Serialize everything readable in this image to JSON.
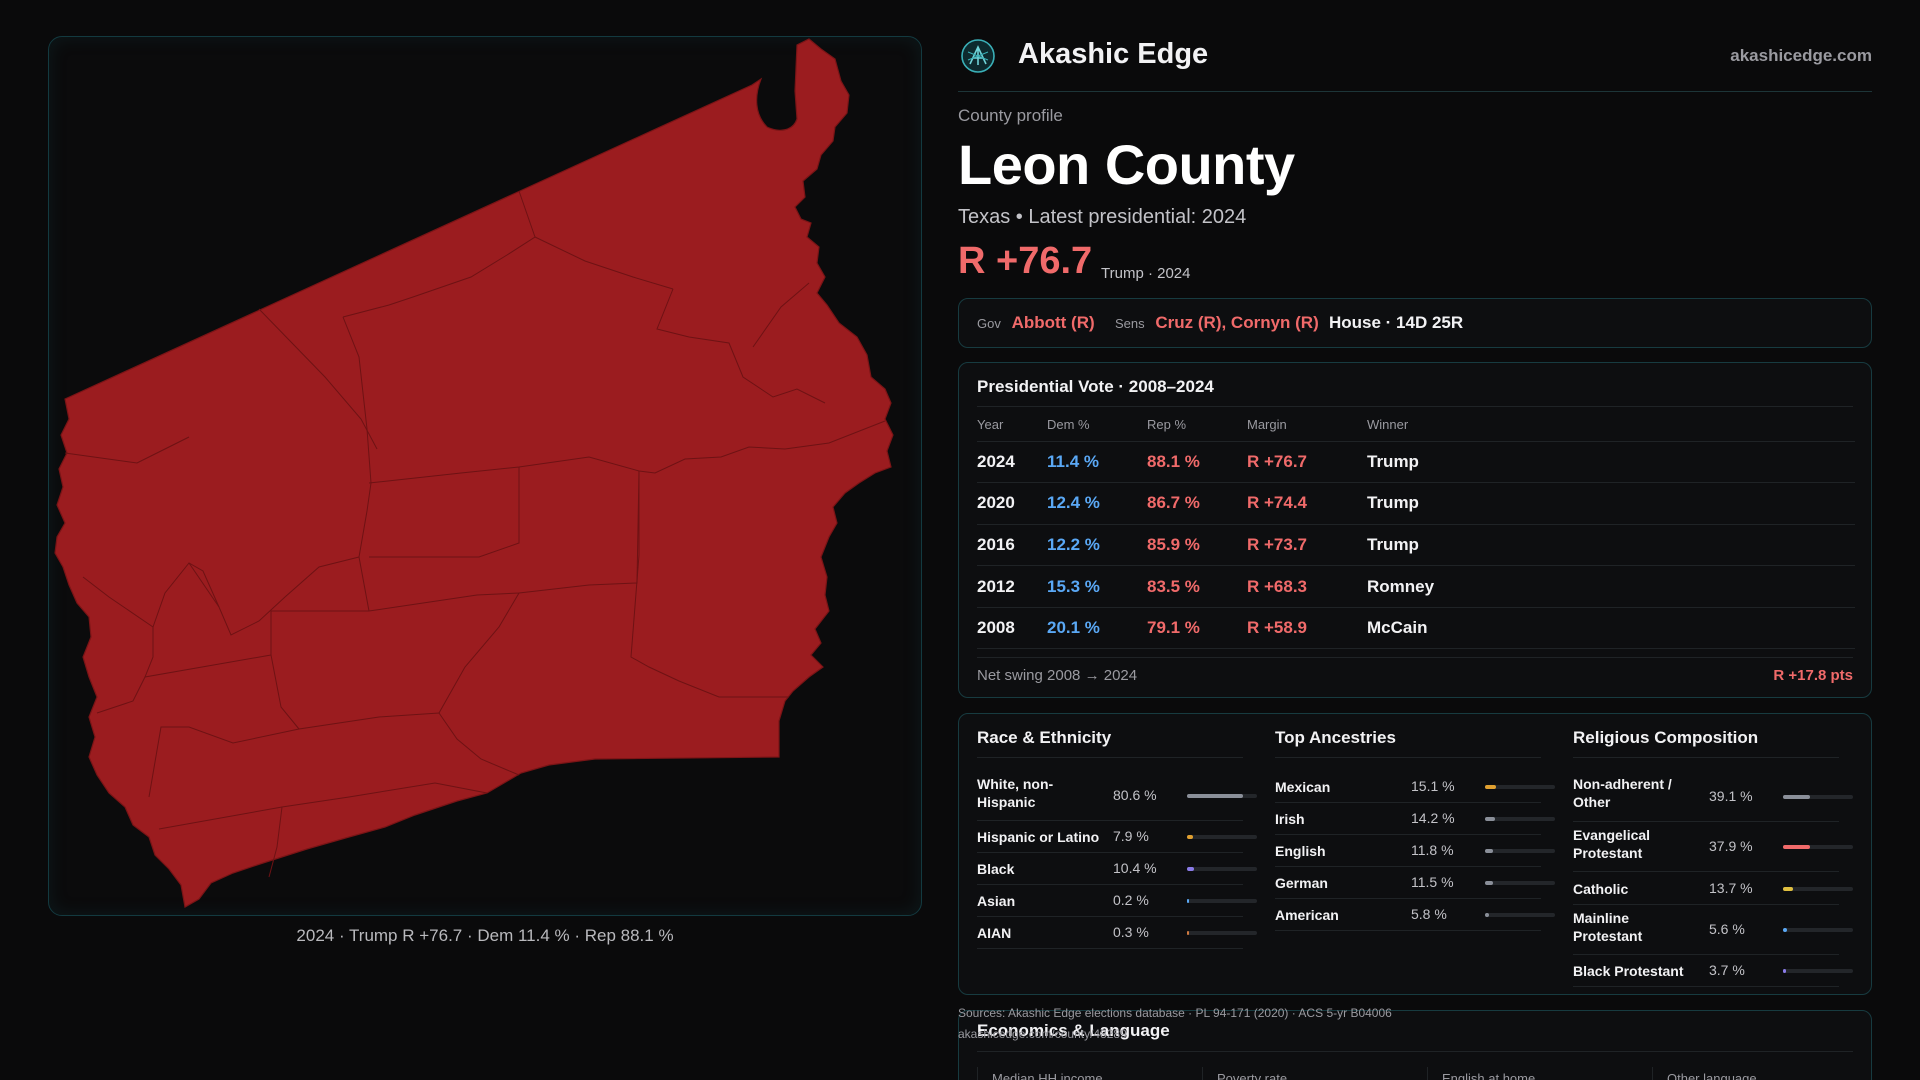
{
  "brand": {
    "name": "Akashic Edge",
    "url": "akashicedge.com"
  },
  "profile": {
    "eyebrow": "County profile",
    "county": "Leon County",
    "subline": "Texas • Latest presidential: 2024",
    "margin": "R +76.7",
    "margin_note": "Trump · 2024"
  },
  "officials": {
    "gov_label": "Gov",
    "gov": "Abbott (R)",
    "sens_label": "Sens",
    "sens": "Cruz (R), Cornyn (R)",
    "house": "House · 14D 25R"
  },
  "presidential": {
    "title": "Presidential Vote · 2008–2024",
    "headers": [
      "Year",
      "Dem %",
      "Rep %",
      "Margin",
      "Winner"
    ],
    "rows": [
      [
        "2024",
        "11.4 %",
        "88.1 %",
        "R +76.7",
        "Trump"
      ],
      [
        "2020",
        "12.4 %",
        "86.7 %",
        "R +74.4",
        "Trump"
      ],
      [
        "2016",
        "12.2 %",
        "85.9 %",
        "R +73.7",
        "Trump"
      ],
      [
        "2012",
        "15.3 %",
        "83.5 %",
        "R +68.3",
        "Romney"
      ],
      [
        "2008",
        "20.1 %",
        "79.1 %",
        "R +58.9",
        "McCain"
      ]
    ],
    "swing_label": "Net swing 2008 → 2024",
    "swing_value": "R +17.8 pts"
  },
  "race": {
    "title": "Race & Ethnicity",
    "rows": [
      {
        "label": "White, non-Hispanic",
        "value": "80.6 %",
        "pct": 80.6,
        "color": "#8a8f99"
      },
      {
        "label": "Hispanic or Latino",
        "value": "7.9 %",
        "pct": 7.9,
        "color": "#e0a030"
      },
      {
        "label": "Black",
        "value": "10.4 %",
        "pct": 10.4,
        "color": "#8a7be8"
      },
      {
        "label": "Asian",
        "value": "0.2 %",
        "pct": 0.2,
        "color": "#5aa8f5"
      },
      {
        "label": "AIAN",
        "value": "0.3 %",
        "pct": 0.3,
        "color": "#d07a40"
      }
    ]
  },
  "ancestry": {
    "title": "Top Ancestries",
    "rows": [
      {
        "label": "Mexican",
        "value": "15.1 %",
        "pct": 15.1,
        "color": "#e0a030"
      },
      {
        "label": "Irish",
        "value": "14.2 %",
        "pct": 14.2,
        "color": "#8a8f99"
      },
      {
        "label": "English",
        "value": "11.8 %",
        "pct": 11.8,
        "color": "#8a8f99"
      },
      {
        "label": "German",
        "value": "11.5 %",
        "pct": 11.5,
        "color": "#8a8f99"
      },
      {
        "label": "American",
        "value": "5.8 %",
        "pct": 5.8,
        "color": "#8a8f99"
      }
    ]
  },
  "religion": {
    "title": "Religious Composition",
    "rows": [
      {
        "label": "Non-adherent / Other",
        "value": "39.1 %",
        "pct": 39.1,
        "color": "#8a8f99"
      },
      {
        "label": "Evangelical Protestant",
        "value": "37.9 %",
        "pct": 37.9,
        "color": "#f06a6a"
      },
      {
        "label": "Catholic",
        "value": "13.7 %",
        "pct": 13.7,
        "color": "#e0c040"
      },
      {
        "label": "Mainline Protestant",
        "value": "5.6 %",
        "pct": 5.6,
        "color": "#5aa8f5"
      },
      {
        "label": "Black Protestant",
        "value": "3.7 %",
        "pct": 3.7,
        "color": "#8a7be8"
      }
    ]
  },
  "sources": "Sources: Akashic Edge elections database · PL 94-171 (2020) · ACS 5-yr B04006",
  "economics": {
    "title": "Economics & Language",
    "url_fragment": "akashicedge.com/county/48289",
    "metrics": [
      "Median HH income",
      "Poverty rate",
      "English at home",
      "Other language"
    ]
  },
  "map": {
    "caption": "2024 · Trump R +76.7 · Dem 11.4 % · Rep 88.1 %",
    "fill": "#9b1c1f"
  }
}
